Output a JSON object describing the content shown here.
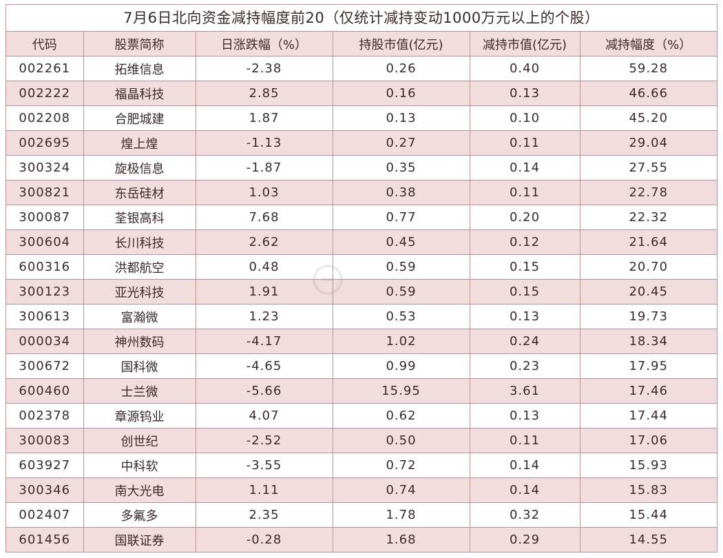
{
  "title": "7月6日北向资金减持幅度前20（仅统计减持变动1000万元以上的个股）",
  "colors": {
    "border": "#b89292",
    "stripe": "#f2dcdc",
    "text": "#3a2a2a"
  },
  "headers": {
    "code": "代码",
    "name": "股票简称",
    "change": "日涨跌幅（%）",
    "holding": "持股市值(亿元)",
    "reduced": "减持市值(亿元)",
    "ratio": "减持幅度（%）"
  },
  "rows": [
    {
      "code": "002261",
      "name": "拓维信息",
      "change": "-2.38",
      "holding": "0.26",
      "reduced": "0.40",
      "ratio": "59.28"
    },
    {
      "code": "002222",
      "name": "福晶科技",
      "change": "2.85",
      "holding": "0.16",
      "reduced": "0.13",
      "ratio": "46.66"
    },
    {
      "code": "002208",
      "name": "合肥城建",
      "change": "1.87",
      "holding": "0.13",
      "reduced": "0.10",
      "ratio": "45.20"
    },
    {
      "code": "002695",
      "name": "煌上煌",
      "change": "-1.13",
      "holding": "0.27",
      "reduced": "0.11",
      "ratio": "29.04"
    },
    {
      "code": "300324",
      "name": "旋极信息",
      "change": "-1.87",
      "holding": "0.35",
      "reduced": "0.14",
      "ratio": "27.55"
    },
    {
      "code": "300821",
      "name": "东岳硅材",
      "change": "1.03",
      "holding": "0.38",
      "reduced": "0.11",
      "ratio": "22.78"
    },
    {
      "code": "300087",
      "name": "荃银高科",
      "change": "7.68",
      "holding": "0.77",
      "reduced": "0.20",
      "ratio": "22.32"
    },
    {
      "code": "300604",
      "name": "长川科技",
      "change": "2.62",
      "holding": "0.45",
      "reduced": "0.12",
      "ratio": "21.64"
    },
    {
      "code": "600316",
      "name": "洪都航空",
      "change": "0.48",
      "holding": "0.59",
      "reduced": "0.15",
      "ratio": "20.70"
    },
    {
      "code": "300123",
      "name": "亚光科技",
      "change": "1.91",
      "holding": "0.59",
      "reduced": "0.15",
      "ratio": "20.45"
    },
    {
      "code": "300613",
      "name": "富瀚微",
      "change": "1.23",
      "holding": "0.53",
      "reduced": "0.13",
      "ratio": "19.73"
    },
    {
      "code": "000034",
      "name": "神州数码",
      "change": "-4.17",
      "holding": "1.02",
      "reduced": "0.24",
      "ratio": "18.34"
    },
    {
      "code": "300672",
      "name": "国科微",
      "change": "-4.65",
      "holding": "0.99",
      "reduced": "0.23",
      "ratio": "17.95"
    },
    {
      "code": "600460",
      "name": "士兰微",
      "change": "-5.66",
      "holding": "15.95",
      "reduced": "3.61",
      "ratio": "17.46"
    },
    {
      "code": "002378",
      "name": "章源钨业",
      "change": "4.07",
      "holding": "0.62",
      "reduced": "0.13",
      "ratio": "17.44"
    },
    {
      "code": "300083",
      "name": "创世纪",
      "change": "-2.52",
      "holding": "0.50",
      "reduced": "0.11",
      "ratio": "17.06"
    },
    {
      "code": "603927",
      "name": "中科软",
      "change": "-3.55",
      "holding": "0.72",
      "reduced": "0.14",
      "ratio": "15.93"
    },
    {
      "code": "300346",
      "name": "南大光电",
      "change": "1.11",
      "holding": "0.74",
      "reduced": "0.14",
      "ratio": "15.83"
    },
    {
      "code": "002407",
      "name": "多氟多",
      "change": "2.35",
      "holding": "1.78",
      "reduced": "0.32",
      "ratio": "15.44"
    },
    {
      "code": "601456",
      "name": "国联证券",
      "change": "-0.28",
      "holding": "1.68",
      "reduced": "0.29",
      "ratio": "14.55"
    }
  ]
}
